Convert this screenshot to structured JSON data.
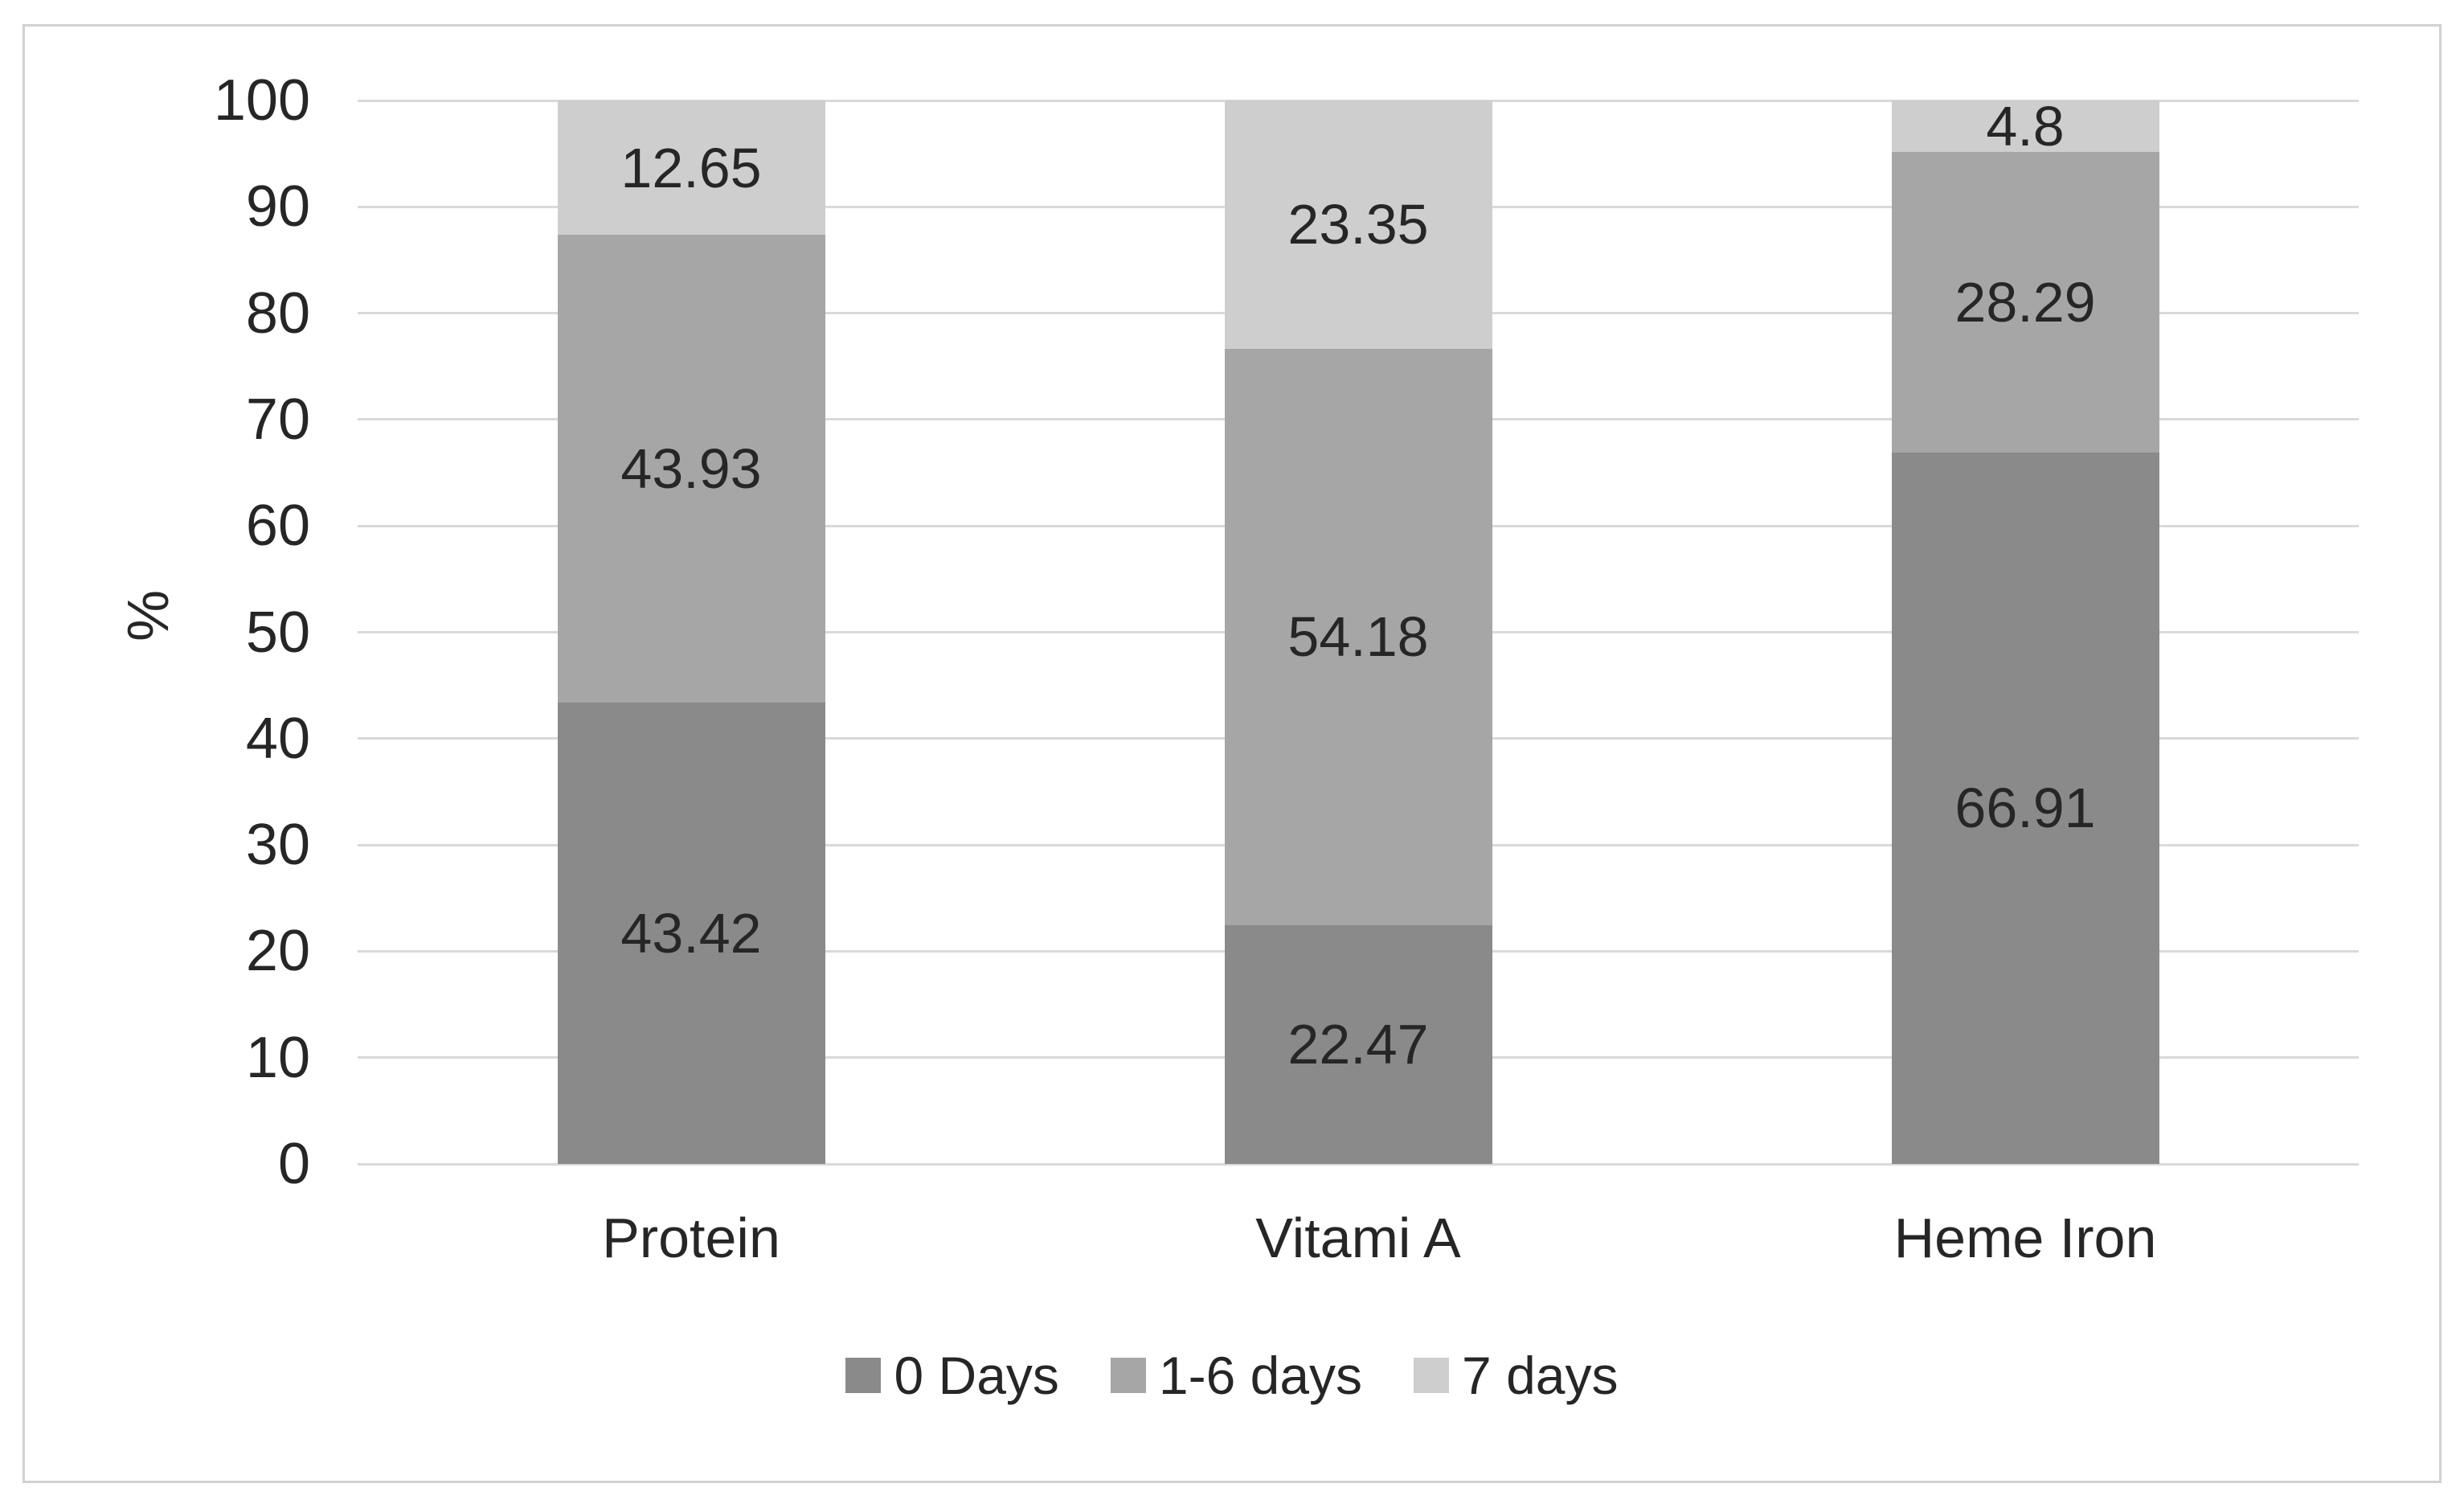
{
  "chart": {
    "background_color": "#ffffff",
    "frame_border_color": "#d1d1d1",
    "gridline_color": "#d9d9d9",
    "text_color": "#262626"
  },
  "chart_data": {
    "type": "bar",
    "stacked": true,
    "title": "",
    "categories": [
      "Protein",
      "Vitami A",
      "Heme Iron"
    ],
    "series": [
      {
        "name": "0 Days",
        "color": "#8A8A8A",
        "values": [
          43.42,
          22.47,
          66.91
        ]
      },
      {
        "name": "1-6 days",
        "color": "#A6A6A6",
        "values": [
          43.93,
          54.18,
          28.29
        ]
      },
      {
        "name": "7 days",
        "color": "#CECECE",
        "values": [
          12.65,
          23.35,
          4.8
        ]
      }
    ],
    "data_labels": [
      [
        "43.42",
        "22.47",
        "66.91"
      ],
      [
        "43.93",
        "54.18",
        "28.29"
      ],
      [
        "12.65",
        "23.35",
        "4.8"
      ]
    ],
    "xlabel": "",
    "ylabel": "%",
    "ylim": [
      0,
      100
    ],
    "ytick_step": 10,
    "ytick_labels": [
      "100",
      "90",
      "80",
      "70",
      "60",
      "50",
      "40",
      "30",
      "20",
      "10",
      "0"
    ],
    "grid": true,
    "legend_position": "bottom-center",
    "legend_labels": [
      "0 Days",
      "1-6 days",
      "7 days"
    ]
  }
}
